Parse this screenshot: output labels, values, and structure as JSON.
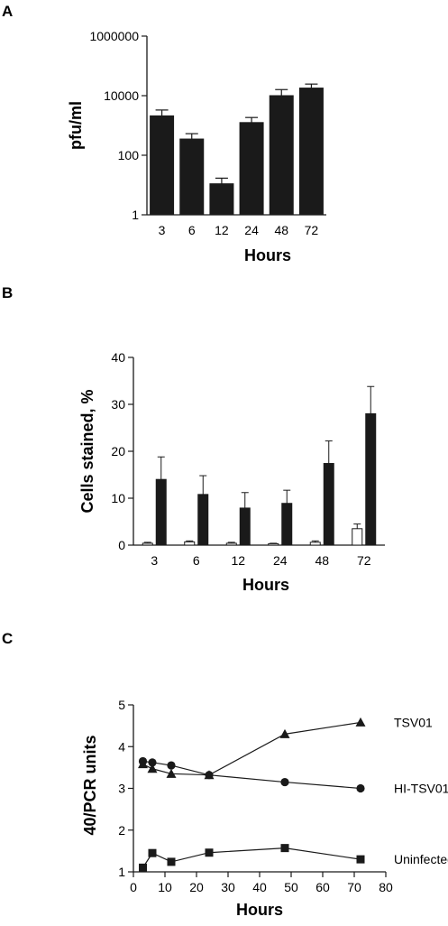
{
  "panels": {
    "a": {
      "letter": "A"
    },
    "b": {
      "letter": "B"
    },
    "c": {
      "letter": "C"
    }
  },
  "chart_data": [
    {
      "type": "bar",
      "ylabel": "pfu/ml",
      "xlabel": "Hours",
      "yscale": "log",
      "ylim": [
        1,
        1000000
      ],
      "yticks": [
        "1",
        "100",
        "10000",
        "1000000"
      ],
      "categories": [
        "3",
        "6",
        "12",
        "24",
        "48",
        "72"
      ],
      "series": [
        {
          "values": [
            2100,
            350,
            11,
            1250,
            10000,
            18000
          ],
          "error": [
            1200,
            180,
            6,
            600,
            6000,
            6500
          ],
          "color": "#1a1a1a"
        }
      ]
    },
    {
      "type": "bar",
      "ylabel": "Cells stained, %",
      "xlabel": "Hours",
      "ylim": [
        0,
        40
      ],
      "yticks": [
        "0",
        "10",
        "20",
        "30",
        "40"
      ],
      "categories": [
        "3",
        "6",
        "12",
        "24",
        "48",
        "72"
      ],
      "series": [
        {
          "values": [
            0.4,
            0.7,
            0.4,
            0.3,
            0.6,
            3.5
          ],
          "error": [
            0.2,
            0.2,
            0.2,
            0.1,
            0.3,
            1.0
          ],
          "color": "#ffffff"
        },
        {
          "values": [
            14,
            10.8,
            7.9,
            8.9,
            17.4,
            28
          ],
          "error": [
            4.8,
            4.0,
            3.3,
            2.8,
            4.8,
            5.8
          ],
          "color": "#1a1a1a"
        }
      ]
    },
    {
      "type": "line",
      "ylabel": "40/PCR units",
      "xlabel": "Hours",
      "xlim": [
        0,
        80
      ],
      "ylim": [
        1,
        5
      ],
      "xticks": [
        "0",
        "10",
        "20",
        "30",
        "40",
        "50",
        "60",
        "70",
        "80"
      ],
      "yticks": [
        "1",
        "2",
        "3",
        "4",
        "5"
      ],
      "x": [
        3,
        6,
        12,
        24,
        48,
        72
      ],
      "series": [
        {
          "name": "TSV01",
          "marker": "triangle",
          "values": [
            3.58,
            3.47,
            3.35,
            3.32,
            4.3,
            4.58
          ]
        },
        {
          "name": "HI-TSV01",
          "marker": "circle",
          "values": [
            3.65,
            3.62,
            3.55,
            3.32,
            3.15,
            3.0
          ]
        },
        {
          "name": "Uninfected",
          "marker": "square",
          "values": [
            1.1,
            1.45,
            1.24,
            1.46,
            1.57,
            1.3
          ]
        }
      ]
    }
  ]
}
